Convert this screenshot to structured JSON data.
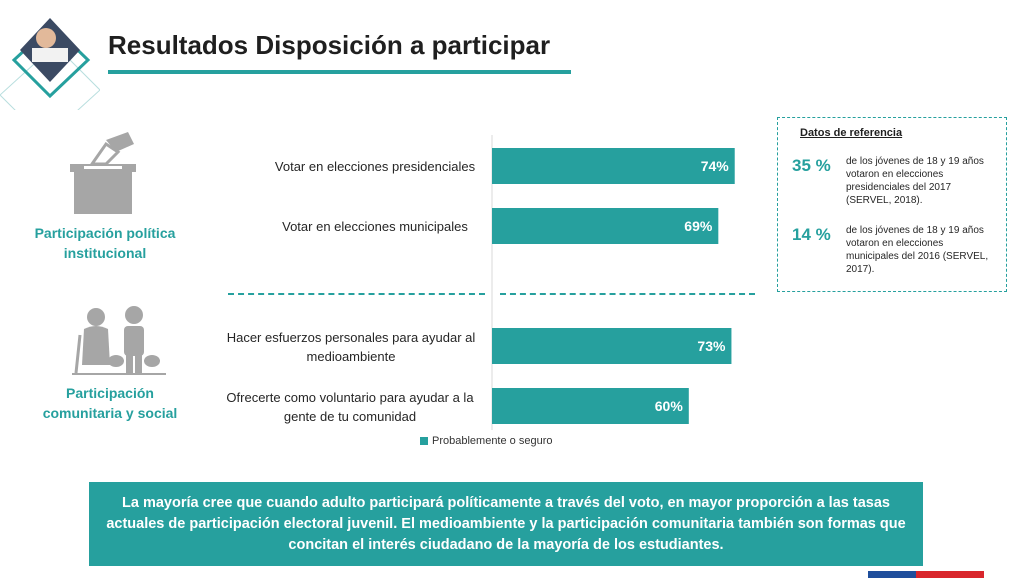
{
  "header": {
    "title": "Resultados Disposición a participar"
  },
  "categories": [
    {
      "label": "Participación política institucional",
      "icon": "ballot-box-icon"
    },
    {
      "label": "Participación comunitaria y social",
      "icon": "elderly-people-icon"
    }
  ],
  "chart_data": {
    "type": "bar",
    "orientation": "horizontal",
    "categories": [
      "Votar en elecciones presidenciales",
      "Votar en elecciones municipales",
      "Hacer esfuerzos personales para ayudar al medioambiente",
      "Ofrecerte como voluntario para ayudar a la gente de tu comunidad"
    ],
    "series": [
      {
        "name": "Probablemente o seguro",
        "values": [
          74,
          69,
          73,
          60
        ]
      }
    ],
    "data_labels": [
      "74%",
      "69%",
      "73%",
      "60%"
    ],
    "xlim": [
      0,
      100
    ],
    "grid": false,
    "legend_position": "bottom",
    "bar_color": "#26a09e"
  },
  "reference": {
    "title": "Datos de referencia",
    "items": [
      {
        "pct": "35 %",
        "text": "de los jóvenes de 18 y 19 años votaron en elecciones presidenciales del 2017 (SERVEL, 2018)."
      },
      {
        "pct": "14 %",
        "text": "de los jóvenes de 18 y 19 años votaron en elecciones municipales del 2016 (SERVEL, 2017)."
      }
    ]
  },
  "conclusion": "La mayoría cree que cuando adulto participará políticamente a través del voto, en mayor proporción a las tasas actuales de participación electoral juvenil.  El medioambiente y la participación comunitaria también son formas que concitan el interés ciudadano de la mayoría de los estudiantes.",
  "colors": {
    "accent": "#26a09e",
    "icon_gray": "#a6a6a6",
    "flag_blue": "#1f4e9c",
    "flag_red": "#d9262c"
  }
}
